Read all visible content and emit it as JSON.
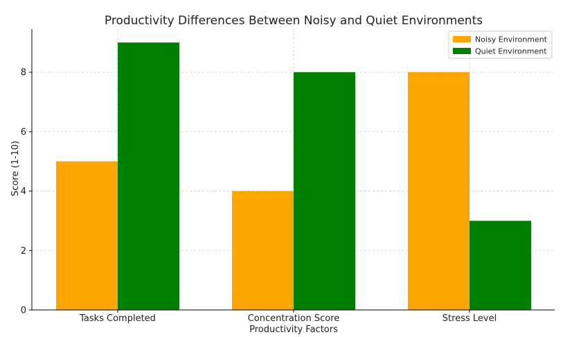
{
  "chart_data": {
    "type": "bar",
    "title": "Productivity Differences Between Noisy and Quiet Environments",
    "xlabel": "Productivity Factors",
    "ylabel": "Score (1-10)",
    "categories": [
      "Tasks Completed",
      "Concentration Score",
      "Stress Level"
    ],
    "series": [
      {
        "name": "Noisy Environment",
        "color": "#ffa500",
        "values": [
          5,
          4,
          8
        ]
      },
      {
        "name": "Quiet Environment",
        "color": "#008000",
        "values": [
          9,
          8,
          3
        ]
      }
    ],
    "ylim": [
      0,
      9.45
    ],
    "yticks": [
      0,
      2,
      4,
      6,
      8
    ],
    "grid": true,
    "legend_position": "top-right"
  }
}
